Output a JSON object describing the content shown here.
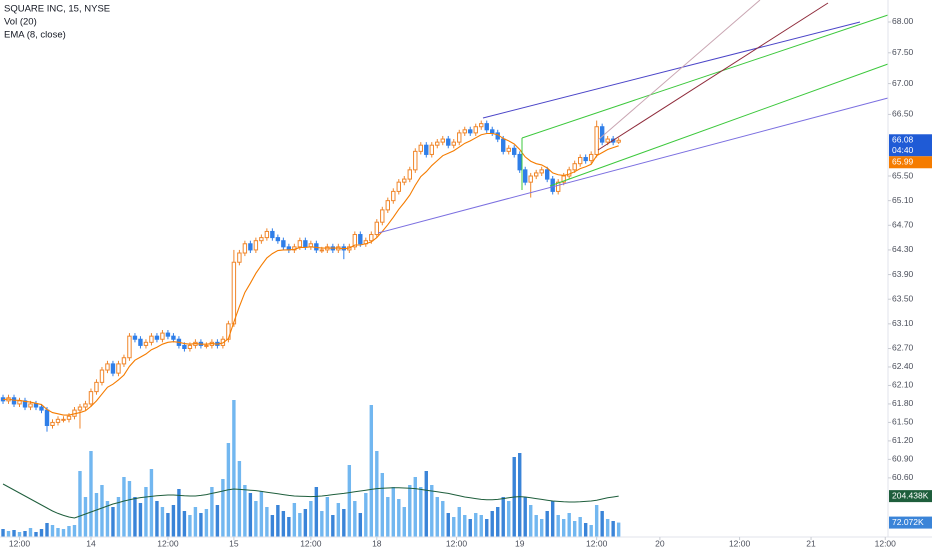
{
  "chart_data": {
    "type": "candlestick",
    "title": "SQUARE INC, 15, NYSE",
    "indicators": [
      "Vol (20)",
      "EMA (8, close)"
    ],
    "up_color": "#f0862a",
    "down_color": "#2f7ee8",
    "ylim": [
      59.64,
      68.357
    ],
    "xlim": [
      -0.55,
      161
    ],
    "yticks": [
      {
        "value": 68.0,
        "label": "68.00"
      },
      {
        "value": 67.5,
        "label": "67.50"
      },
      {
        "value": 67.0,
        "label": "67.00"
      },
      {
        "value": 66.5,
        "label": "66.50"
      },
      {
        "value": 65.5,
        "label": "65.50"
      },
      {
        "value": 65.1,
        "label": "65.10"
      },
      {
        "value": 64.7,
        "label": "64.70"
      },
      {
        "value": 64.3,
        "label": "64.30"
      },
      {
        "value": 63.9,
        "label": "63.90"
      },
      {
        "value": 63.5,
        "label": "63.50"
      },
      {
        "value": 63.1,
        "label": "63.10"
      },
      {
        "value": 62.7,
        "label": "62.70"
      },
      {
        "value": 62.4,
        "label": "62.40"
      },
      {
        "value": 62.1,
        "label": "62.10"
      },
      {
        "value": 61.8,
        "label": "61.80"
      },
      {
        "value": 61.5,
        "label": "61.50"
      },
      {
        "value": 61.2,
        "label": "61.20"
      },
      {
        "value": 60.9,
        "label": "60.90"
      },
      {
        "value": 60.6,
        "label": "60.60"
      }
    ],
    "xticks": [
      {
        "value": 3,
        "label": "12:00"
      },
      {
        "value": 16,
        "label": "14"
      },
      {
        "value": 30,
        "label": "12:00"
      },
      {
        "value": 42,
        "label": "15"
      },
      {
        "value": 56,
        "label": "12:00"
      },
      {
        "value": 68,
        "label": "18"
      },
      {
        "value": 82.5,
        "label": "12:00"
      },
      {
        "value": 94,
        "label": "19"
      },
      {
        "value": 108,
        "label": "12:00"
      },
      {
        "value": 119.5,
        "label": "20"
      },
      {
        "value": 134,
        "label": "12:00"
      },
      {
        "value": 147,
        "label": "21"
      },
      {
        "value": 160.5,
        "label": "12:00"
      }
    ],
    "candles": [
      [
        61.9,
        61.95,
        61.8,
        61.85
      ],
      [
        61.85,
        61.95,
        61.8,
        61.9
      ],
      [
        61.9,
        61.95,
        61.75,
        61.8
      ],
      [
        61.8,
        61.9,
        61.75,
        61.85
      ],
      [
        61.85,
        61.9,
        61.7,
        61.75
      ],
      [
        61.75,
        61.85,
        61.7,
        61.8
      ],
      [
        61.8,
        61.85,
        61.7,
        61.75
      ],
      [
        61.75,
        61.8,
        61.65,
        61.7
      ],
      [
        61.7,
        61.75,
        61.35,
        61.45
      ],
      [
        61.45,
        61.55,
        61.4,
        61.5
      ],
      [
        61.5,
        61.6,
        61.45,
        61.55
      ],
      [
        61.55,
        61.6,
        61.5,
        61.55
      ],
      [
        61.55,
        61.65,
        61.5,
        61.6
      ],
      [
        61.6,
        61.75,
        61.55,
        61.7
      ],
      [
        61.7,
        61.8,
        61.4,
        61.75
      ],
      [
        61.75,
        61.85,
        61.7,
        61.8
      ],
      [
        61.8,
        62.05,
        61.75,
        62.0
      ],
      [
        62.0,
        62.2,
        61.95,
        62.15
      ],
      [
        62.15,
        62.4,
        62.1,
        62.35
      ],
      [
        62.35,
        62.5,
        62.3,
        62.45
      ],
      [
        62.45,
        62.5,
        62.25,
        62.3
      ],
      [
        62.3,
        62.5,
        62.25,
        62.45
      ],
      [
        62.45,
        62.6,
        62.4,
        62.55
      ],
      [
        62.55,
        62.95,
        62.5,
        62.9
      ],
      [
        62.9,
        62.95,
        62.8,
        62.85
      ],
      [
        62.85,
        62.9,
        62.7,
        62.75
      ],
      [
        62.75,
        62.85,
        62.7,
        62.8
      ],
      [
        62.8,
        62.95,
        62.75,
        62.9
      ],
      [
        62.9,
        62.95,
        62.8,
        62.85
      ],
      [
        62.85,
        63.0,
        62.8,
        62.95
      ],
      [
        62.95,
        63.0,
        62.85,
        62.9
      ],
      [
        62.9,
        62.95,
        62.8,
        62.85
      ],
      [
        62.85,
        62.9,
        62.7,
        62.75
      ],
      [
        62.75,
        62.8,
        62.65,
        62.7
      ],
      [
        62.7,
        62.8,
        62.65,
        62.75
      ],
      [
        62.75,
        62.85,
        62.7,
        62.8
      ],
      [
        62.8,
        62.85,
        62.7,
        62.75
      ],
      [
        62.75,
        62.8,
        62.7,
        62.75
      ],
      [
        62.75,
        62.85,
        62.7,
        62.8
      ],
      [
        62.8,
        62.85,
        62.7,
        62.75
      ],
      [
        62.75,
        62.9,
        62.7,
        62.85
      ],
      [
        62.85,
        63.15,
        62.8,
        63.1
      ],
      [
        63.1,
        64.3,
        63.05,
        64.1
      ],
      [
        64.1,
        64.3,
        64.05,
        64.25
      ],
      [
        64.25,
        64.45,
        64.2,
        64.4
      ],
      [
        64.4,
        64.45,
        64.25,
        64.3
      ],
      [
        64.3,
        64.5,
        64.25,
        64.45
      ],
      [
        64.45,
        64.55,
        64.4,
        64.5
      ],
      [
        64.5,
        64.65,
        64.45,
        64.6
      ],
      [
        64.6,
        64.65,
        64.45,
        64.5
      ],
      [
        64.5,
        64.55,
        64.4,
        64.45
      ],
      [
        64.45,
        64.5,
        64.3,
        64.35
      ],
      [
        64.35,
        64.4,
        64.25,
        64.3
      ],
      [
        64.3,
        64.4,
        64.25,
        64.35
      ],
      [
        64.35,
        64.5,
        64.3,
        64.45
      ],
      [
        64.45,
        64.5,
        64.3,
        64.35
      ],
      [
        64.35,
        64.45,
        64.3,
        64.4
      ],
      [
        64.4,
        64.45,
        64.25,
        64.3
      ],
      [
        64.3,
        64.35,
        64.25,
        64.3
      ],
      [
        64.3,
        64.4,
        64.25,
        64.35
      ],
      [
        64.35,
        64.4,
        64.25,
        64.3
      ],
      [
        64.3,
        64.4,
        64.25,
        64.35
      ],
      [
        64.35,
        64.4,
        64.15,
        64.3
      ],
      [
        64.3,
        64.4,
        64.25,
        64.35
      ],
      [
        64.35,
        64.6,
        64.3,
        64.55
      ],
      [
        64.55,
        64.6,
        64.35,
        64.4
      ],
      [
        64.4,
        64.5,
        64.35,
        64.45
      ],
      [
        64.45,
        64.6,
        64.4,
        64.55
      ],
      [
        64.55,
        64.8,
        64.5,
        64.75
      ],
      [
        64.75,
        65.0,
        64.7,
        64.95
      ],
      [
        64.95,
        65.15,
        64.9,
        65.1
      ],
      [
        65.1,
        65.3,
        65.05,
        65.25
      ],
      [
        65.25,
        65.45,
        65.2,
        65.4
      ],
      [
        65.4,
        65.5,
        65.35,
        65.45
      ],
      [
        65.45,
        65.65,
        65.4,
        65.6
      ],
      [
        65.6,
        65.95,
        65.55,
        65.9
      ],
      [
        65.9,
        66.05,
        65.85,
        66.0
      ],
      [
        66.0,
        66.05,
        65.8,
        65.85
      ],
      [
        65.85,
        66.05,
        65.8,
        66.0
      ],
      [
        66.0,
        66.1,
        65.95,
        66.05
      ],
      [
        66.05,
        66.15,
        66.0,
        66.1
      ],
      [
        66.1,
        66.15,
        65.95,
        66.0
      ],
      [
        66.0,
        66.1,
        65.95,
        66.05
      ],
      [
        66.05,
        66.25,
        66.0,
        66.2
      ],
      [
        66.2,
        66.3,
        66.15,
        66.25
      ],
      [
        66.25,
        66.3,
        66.15,
        66.2
      ],
      [
        66.2,
        66.35,
        66.15,
        66.3
      ],
      [
        66.3,
        66.4,
        66.25,
        66.35
      ],
      [
        66.35,
        66.4,
        66.2,
        66.25
      ],
      [
        66.25,
        66.3,
        66.15,
        66.2
      ],
      [
        66.2,
        66.25,
        66.05,
        66.1
      ],
      [
        66.1,
        66.15,
        65.85,
        65.9
      ],
      [
        65.9,
        66.0,
        65.85,
        65.95
      ],
      [
        65.95,
        66.0,
        65.8,
        65.85
      ],
      [
        65.85,
        65.9,
        65.55,
        65.6
      ],
      [
        65.6,
        65.65,
        65.35,
        65.4
      ],
      [
        65.4,
        65.55,
        65.15,
        65.5
      ],
      [
        65.5,
        65.6,
        65.45,
        65.55
      ],
      [
        65.55,
        65.65,
        65.5,
        65.6
      ],
      [
        65.6,
        65.65,
        65.4,
        65.45
      ],
      [
        65.45,
        65.5,
        65.2,
        65.25
      ],
      [
        65.25,
        65.45,
        65.2,
        65.4
      ],
      [
        65.4,
        65.55,
        65.35,
        65.5
      ],
      [
        65.5,
        65.65,
        65.45,
        65.6
      ],
      [
        65.6,
        65.75,
        65.55,
        65.7
      ],
      [
        65.7,
        65.85,
        65.65,
        65.8
      ],
      [
        65.8,
        65.85,
        65.7,
        65.75
      ],
      [
        65.75,
        65.9,
        65.7,
        65.85
      ],
      [
        65.85,
        66.4,
        65.8,
        66.3
      ],
      [
        66.3,
        66.35,
        66.0,
        66.05
      ],
      [
        66.05,
        66.15,
        66.0,
        66.1
      ],
      [
        66.1,
        66.15,
        66.0,
        66.05
      ],
      [
        66.05,
        66.12,
        66.02,
        66.08
      ]
    ],
    "ema": {
      "color": "#f57c00",
      "values": [
        61.87,
        61.88,
        61.86,
        61.86,
        61.84,
        61.83,
        61.81,
        61.79,
        61.71,
        61.66,
        61.64,
        61.62,
        61.62,
        61.64,
        61.66,
        61.69,
        61.76,
        61.85,
        61.96,
        62.07,
        62.12,
        62.19,
        62.27,
        62.41,
        62.51,
        62.56,
        62.61,
        62.68,
        62.72,
        62.77,
        62.8,
        62.81,
        62.8,
        62.78,
        62.77,
        62.78,
        62.77,
        62.77,
        62.78,
        62.77,
        62.79,
        62.86,
        63.13,
        63.38,
        63.61,
        63.76,
        63.92,
        64.05,
        64.17,
        64.24,
        64.29,
        64.3,
        64.3,
        64.31,
        64.34,
        64.34,
        64.35,
        64.34,
        64.33,
        64.33,
        64.33,
        64.33,
        64.32,
        64.33,
        64.38,
        64.38,
        64.4,
        64.43,
        64.5,
        64.6,
        64.71,
        64.83,
        64.96,
        65.07,
        65.19,
        65.35,
        65.49,
        65.57,
        65.67,
        65.75,
        65.83,
        65.87,
        65.91,
        65.97,
        66.03,
        66.07,
        66.12,
        66.17,
        66.19,
        66.19,
        66.17,
        66.11,
        66.07,
        66.02,
        65.93,
        65.81,
        65.74,
        65.7,
        65.68,
        65.63,
        65.55,
        65.52,
        65.51,
        65.53,
        65.57,
        65.62,
        65.65,
        65.69,
        65.83,
        65.88,
        65.93,
        65.96,
        65.99
      ]
    },
    "volume": {
      "ylim": [
        0,
        2685
      ],
      "up_color": "#72b7f0",
      "down_color": "#3a84d8",
      "ma_color": "#1e5e3c",
      "values": [
        40,
        30,
        35,
        25,
        30,
        45,
        25,
        40,
        70,
        60,
        45,
        40,
        55,
        60,
        330,
        200,
        430,
        220,
        260,
        180,
        150,
        200,
        300,
        280,
        200,
        170,
        250,
        340,
        180,
        150,
        120,
        160,
        240,
        130,
        110,
        150,
        120,
        140,
        250,
        160,
        290,
        470,
        685,
        380,
        260,
        220,
        180,
        230,
        150,
        110,
        160,
        130,
        100,
        170,
        120,
        140,
        180,
        250,
        130,
        200,
        110,
        170,
        140,
        360,
        180,
        120,
        220,
        660,
        430,
        320,
        200,
        250,
        190,
        150,
        260,
        300,
        250,
        330,
        260,
        200,
        180,
        120,
        100,
        150,
        110,
        90,
        120,
        110,
        90,
        130,
        150,
        200,
        180,
        400,
        420,
        200,
        160,
        110,
        90,
        130,
        180,
        110,
        90,
        120,
        80,
        100,
        70,
        60,
        160,
        130,
        90,
        80,
        72.072
      ],
      "ma": [
        265,
        250,
        235,
        220,
        205,
        190,
        175,
        160,
        145,
        130,
        118,
        108,
        100,
        95,
        105,
        115,
        125,
        135,
        145,
        155,
        165,
        172,
        180,
        186,
        192,
        197,
        200,
        203,
        206,
        208,
        210,
        210,
        208,
        206,
        205,
        205,
        208,
        212,
        218,
        224,
        230,
        236,
        240,
        238,
        236,
        234,
        232,
        228,
        224,
        220,
        216,
        212,
        208,
        205,
        204,
        203,
        202,
        203,
        205,
        208,
        212,
        215,
        218,
        222,
        226,
        230,
        234,
        238,
        242,
        244,
        245,
        246,
        246,
        245,
        244,
        242,
        238,
        234,
        230,
        226,
        222,
        218,
        212,
        206,
        200,
        196,
        192,
        188,
        186,
        186,
        188,
        192,
        196,
        200,
        202,
        200,
        196,
        192,
        188,
        184,
        180,
        178,
        176,
        175,
        175,
        176,
        178,
        180,
        184,
        190,
        196,
        200,
        204.438
      ]
    },
    "last_price": 66.08,
    "countdown": "04:40",
    "ema_last": 65.99,
    "volume_ma_last": {
      "value": 204.438,
      "label": "204.438K"
    },
    "volume_last": {
      "value": 72.072,
      "label": "72.072K"
    }
  }
}
